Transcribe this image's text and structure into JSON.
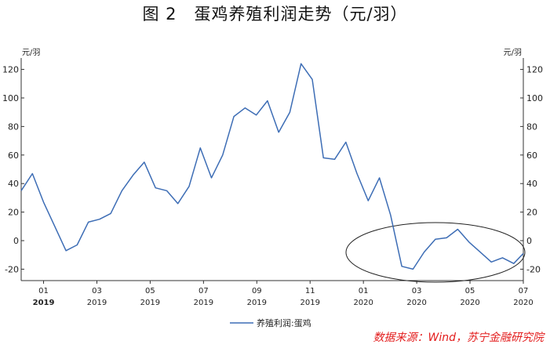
{
  "figure": {
    "title": "图 2　蛋鸡养殖利润走势（元/羽）",
    "source": "数据来源：Wind，苏宁金融研究院"
  },
  "chart_data": {
    "type": "line",
    "left_unit": "元/羽",
    "right_unit": "元/羽",
    "ylim": [
      -28,
      128
    ],
    "y_ticks": [
      120,
      100,
      80,
      60,
      40,
      20,
      0,
      -20
    ],
    "x_ticks": [
      {
        "month": "01",
        "year": "2019",
        "x": 2019.0
      },
      {
        "month": "03",
        "year": "2019",
        "x": 2019.1667
      },
      {
        "month": "05",
        "year": "2019",
        "x": 2019.3333
      },
      {
        "month": "07",
        "year": "2019",
        "x": 2019.5
      },
      {
        "month": "09",
        "year": "2019",
        "x": 2019.6667
      },
      {
        "month": "11",
        "year": "2019",
        "x": 2019.8333
      },
      {
        "month": "01",
        "year": "2020",
        "x": 2020.0
      },
      {
        "month": "03",
        "year": "2020",
        "x": 2020.1667
      },
      {
        "month": "05",
        "year": "2020",
        "x": 2020.3333
      },
      {
        "month": "07",
        "year": "2020",
        "x": 2020.5
      }
    ],
    "xlim": [
      2018.93,
      2020.5
    ],
    "legend": "bottom-center",
    "grid": false,
    "series": [
      {
        "name": "养殖利润:蛋鸡",
        "color": "#3d6db5",
        "x": [
          2018.93,
          2018.965,
          2019.0,
          2019.035,
          2019.07,
          2019.105,
          2019.14,
          2019.175,
          2019.21,
          2019.245,
          2019.28,
          2019.315,
          2019.35,
          2019.385,
          2019.42,
          2019.455,
          2019.49,
          2019.525,
          2019.56,
          2019.595,
          2019.63,
          2019.665,
          2019.7,
          2019.735,
          2019.77,
          2019.805,
          2019.84,
          2019.875,
          2019.91,
          2019.945,
          2019.98,
          2020.015,
          2020.05,
          2020.085,
          2020.12,
          2020.155,
          2020.19,
          2020.225,
          2020.26,
          2020.295,
          2020.33,
          2020.365,
          2020.4,
          2020.435,
          2020.47,
          2020.5
        ],
        "y": [
          35,
          47,
          27,
          10,
          -7,
          -3,
          13,
          15,
          19,
          35,
          46,
          55,
          37,
          35,
          26,
          38,
          65,
          44,
          60,
          87,
          93,
          88,
          98,
          76,
          90,
          124,
          113,
          58,
          57,
          69,
          47,
          28,
          44,
          18,
          -18,
          -20,
          -8,
          1,
          2,
          8,
          -1,
          -8,
          -15,
          -12,
          -16,
          -9
        ]
      }
    ]
  }
}
